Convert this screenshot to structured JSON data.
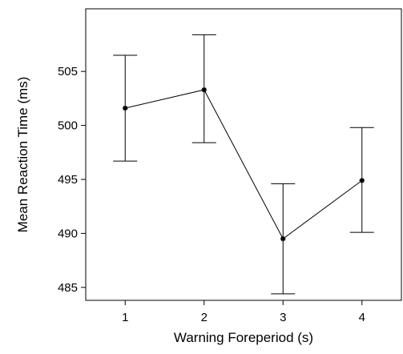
{
  "chart_data": {
    "type": "line",
    "title": "",
    "xlabel": "Warning Foreperiod (s)",
    "ylabel": "Mean Reaction Time (ms)",
    "x": [
      1,
      2,
      3,
      4
    ],
    "xticks": [
      "1",
      "2",
      "3",
      "4"
    ],
    "xlim": [
      0.5,
      4.5
    ],
    "ylim": [
      483.8,
      510.8
    ],
    "yticks": [
      485,
      490,
      495,
      500,
      505
    ],
    "series": [
      {
        "values": [
          501.6,
          503.3,
          489.5,
          494.9
        ],
        "error_low": [
          496.7,
          498.4,
          484.4,
          490.1
        ],
        "error_high": [
          506.5,
          508.4,
          494.6,
          499.8
        ],
        "marker": "asterisk",
        "color": "#000000"
      }
    ],
    "grid": false,
    "legend": "none"
  }
}
